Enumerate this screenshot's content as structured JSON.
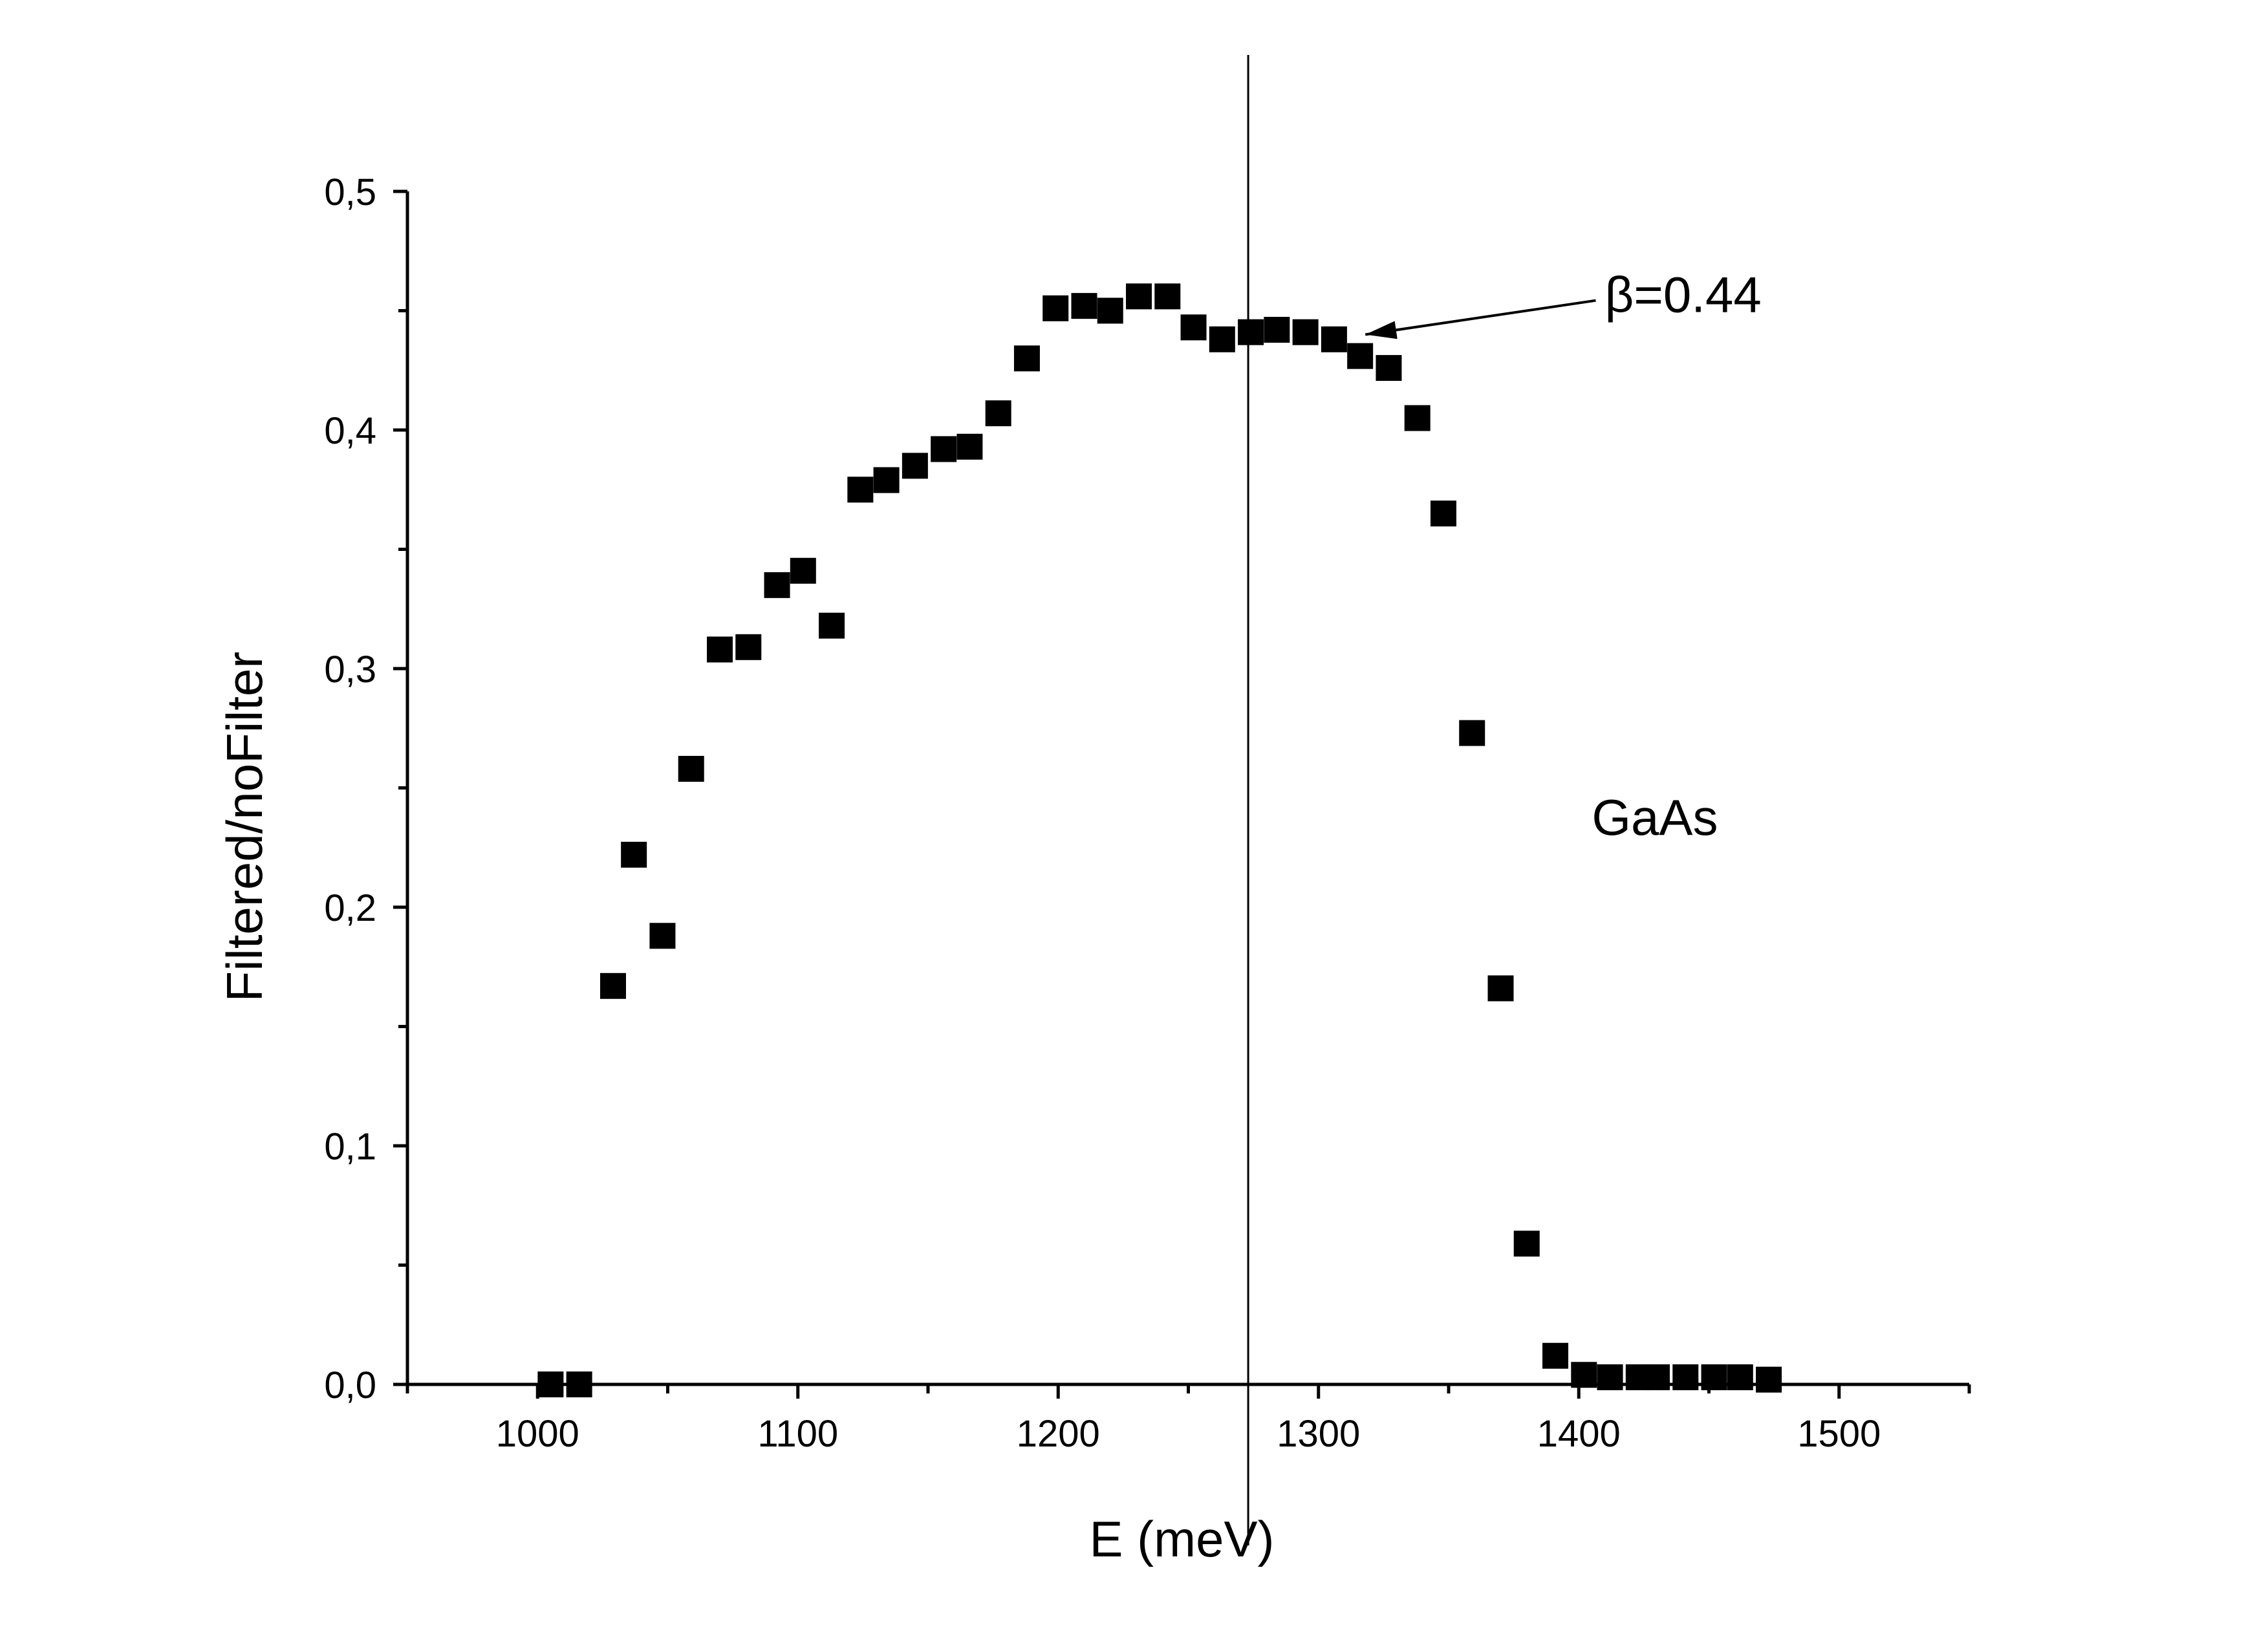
{
  "chart_data": {
    "type": "scatter",
    "title": "",
    "xlabel": "E (meV)",
    "ylabel": "Filtered/noFilter",
    "xlim": [
      950,
      1550
    ],
    "ylim": [
      0,
      0.5
    ],
    "grid": false,
    "x_ticks": [
      {
        "value": 1000,
        "label": "1000"
      },
      {
        "value": 1100,
        "label": "1100"
      },
      {
        "value": 1200,
        "label": "1200"
      },
      {
        "value": 1300,
        "label": "1300"
      },
      {
        "value": 1400,
        "label": "1400"
      },
      {
        "value": 1500,
        "label": "1500"
      }
    ],
    "x_minor_ticks": [
      950,
      1050,
      1150,
      1250,
      1350,
      1450,
      1550
    ],
    "y_ticks": [
      {
        "value": 0.0,
        "label": "0,0"
      },
      {
        "value": 0.1,
        "label": "0,1"
      },
      {
        "value": 0.2,
        "label": "0,2"
      },
      {
        "value": 0.3,
        "label": "0,3"
      },
      {
        "value": 0.4,
        "label": "0,4"
      },
      {
        "value": 0.5,
        "label": "0,5"
      }
    ],
    "y_minor_ticks": [
      0.05,
      0.15,
      0.25,
      0.35,
      0.45
    ],
    "series": [
      {
        "marker": "square",
        "color": "#000000",
        "points": [
          [
            1005,
            0.0
          ],
          [
            1016,
            0.0
          ],
          [
            1029,
            0.167
          ],
          [
            1037,
            0.222
          ],
          [
            1048,
            0.188
          ],
          [
            1059,
            0.258
          ],
          [
            1070,
            0.308
          ],
          [
            1081,
            0.309
          ],
          [
            1092,
            0.335
          ],
          [
            1102,
            0.341
          ],
          [
            1113,
            0.318
          ],
          [
            1124,
            0.375
          ],
          [
            1134,
            0.379
          ],
          [
            1145,
            0.385
          ],
          [
            1156,
            0.392
          ],
          [
            1166,
            0.393
          ],
          [
            1177,
            0.407
          ],
          [
            1188,
            0.43
          ],
          [
            1199,
            0.451
          ],
          [
            1210,
            0.452
          ],
          [
            1220,
            0.45
          ],
          [
            1231,
            0.456
          ],
          [
            1242,
            0.456
          ],
          [
            1252,
            0.443
          ],
          [
            1263,
            0.438
          ],
          [
            1274,
            0.441
          ],
          [
            1284,
            0.442
          ],
          [
            1295,
            0.441
          ],
          [
            1306,
            0.438
          ],
          [
            1316,
            0.431
          ],
          [
            1327,
            0.426
          ],
          [
            1338,
            0.405
          ],
          [
            1348,
            0.365
          ],
          [
            1359,
            0.273
          ],
          [
            1370,
            0.166
          ],
          [
            1380,
            0.059
          ],
          [
            1391,
            0.012
          ],
          [
            1402,
            0.004
          ],
          [
            1412,
            0.003
          ],
          [
            1423,
            0.003
          ],
          [
            1430,
            0.003
          ],
          [
            1441,
            0.003
          ],
          [
            1452,
            0.003
          ],
          [
            1462,
            0.003
          ],
          [
            1473,
            0.002
          ]
        ]
      }
    ],
    "vertical_line": {
      "x": 1273,
      "color": "#000000"
    },
    "annotations": [
      {
        "text": "β=0.44",
        "x": 1410,
        "y": 0.457,
        "arrow_to": [
          1318,
          0.44
        ]
      },
      {
        "text": "GaAs",
        "x": 1405,
        "y": 0.238
      }
    ]
  }
}
